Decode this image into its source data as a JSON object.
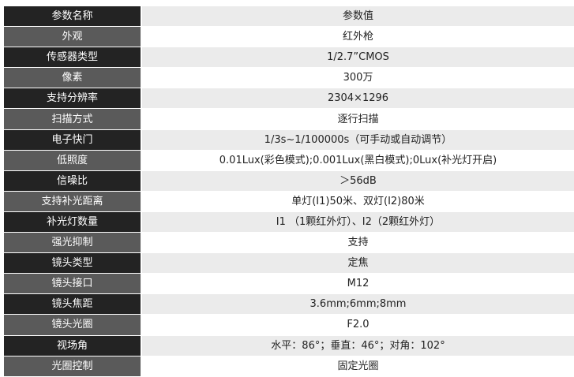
{
  "header": {
    "name": "参数名称",
    "value": "参数值"
  },
  "rows": [
    {
      "name": "外观",
      "value": "红外枪"
    },
    {
      "name": "传感器类型",
      "value": "1/2.7”CMOS"
    },
    {
      "name": "像素",
      "value": "300万"
    },
    {
      "name": "支持分辨率",
      "value": "2304×1296"
    },
    {
      "name": "扫描方式",
      "value": "逐行扫描"
    },
    {
      "name": "电子快门",
      "value": "1/3s~1/100000s（可手动或自动调节）"
    },
    {
      "name": "低照度",
      "value": "0.01Lux(彩色模式);0.001Lux(黑白模式);0Lux(补光灯开启)"
    },
    {
      "name": "信噪比",
      "value": "＞56dB"
    },
    {
      "name": "支持补光距离",
      "value": "单灯(I1)50米、双灯(I2)80米"
    },
    {
      "name": "补光灯数量",
      "value": "I1 （1颗红外灯）、I2（2颗红外灯）"
    },
    {
      "name": "强光抑制",
      "value": "支持"
    },
    {
      "name": "镜头类型",
      "value": "定焦"
    },
    {
      "name": "镜头接口",
      "value": "M12"
    },
    {
      "name": "镜头焦距",
      "value": "3.6mm;6mm;8mm"
    },
    {
      "name": "镜头光圈",
      "value": "F2.0"
    },
    {
      "name": "视场角",
      "value": "水平：86°；垂直：46°；对角：102°"
    },
    {
      "name": "光圈控制",
      "value": "固定光圈"
    }
  ]
}
